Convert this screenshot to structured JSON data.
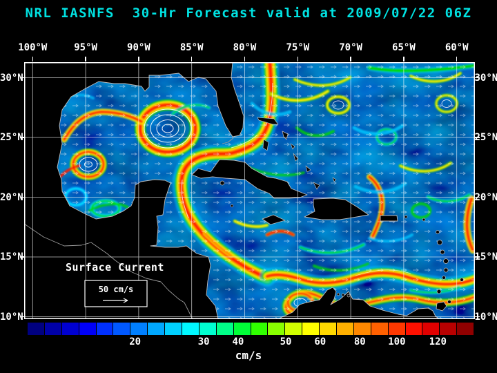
{
  "title": "NRL IASNFS  30-Hr Forecast valid at 2009/07/22 06Z",
  "axes": {
    "lon_labels": [
      "100°W",
      "95°W",
      "90°W",
      "85°W",
      "80°W",
      "75°W",
      "70°W",
      "65°W",
      "60°W"
    ],
    "lat_labels": [
      "30°N",
      "25°N",
      "20°N",
      "15°N",
      "10°N"
    ]
  },
  "map": {
    "annotation": "Surface Current",
    "scale_label": "50 cm/s"
  },
  "colorbar": {
    "unit": "cm/s",
    "colors": [
      "#000080",
      "#0000a8",
      "#0000d0",
      "#0000f8",
      "#0030ff",
      "#0058ff",
      "#0080ff",
      "#00a8ff",
      "#00d0ff",
      "#00f8ff",
      "#00ffd0",
      "#00ff88",
      "#00ff38",
      "#30ff00",
      "#88ff00",
      "#d0ff00",
      "#ffff00",
      "#ffd800",
      "#ffb000",
      "#ff8800",
      "#ff6000",
      "#ff3800",
      "#ff1000",
      "#e00000",
      "#b80000",
      "#900000"
    ],
    "ticks": [
      {
        "label": "20",
        "pos_pct": 24.1
      },
      {
        "label": "30",
        "pos_pct": 39.5
      },
      {
        "label": "40",
        "pos_pct": 47.2
      },
      {
        "label": "50",
        "pos_pct": 57.9
      },
      {
        "label": "60",
        "pos_pct": 65.6
      },
      {
        "label": "80",
        "pos_pct": 74.5
      },
      {
        "label": "100",
        "pos_pct": 82.8
      },
      {
        "label": "120",
        "pos_pct": 92.0
      }
    ]
  },
  "theme": {
    "background": "#000000",
    "title_color": "#00e2e2",
    "label_color": "#ffffff",
    "ocean_base": "#001078",
    "grid_color": "#ffffff"
  }
}
